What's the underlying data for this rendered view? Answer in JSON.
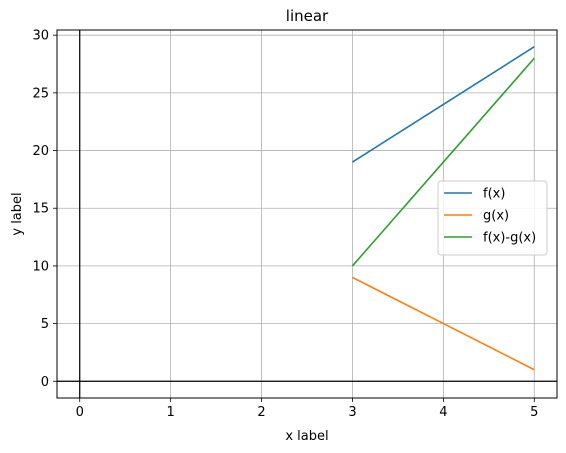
{
  "chart_data": {
    "type": "line",
    "title": "linear",
    "xlabel": "x label",
    "ylabel": "y label",
    "xlim": [
      -0.25,
      5.25
    ],
    "ylim": [
      -1.45,
      30.45
    ],
    "xticks": [
      0,
      1,
      2,
      3,
      4,
      5
    ],
    "yticks": [
      0,
      5,
      10,
      15,
      20,
      25,
      30
    ],
    "grid": true,
    "reference_lines": {
      "x": 0,
      "y": 0
    },
    "legend_position": "center-right",
    "series": [
      {
        "name": "f(x)",
        "color": "#1f77b4",
        "x": [
          3,
          4,
          5
        ],
        "y": [
          19,
          24,
          29
        ]
      },
      {
        "name": "g(x)",
        "color": "#ff7f0e",
        "x": [
          3,
          4,
          5
        ],
        "y": [
          9,
          5,
          1
        ]
      },
      {
        "name": "f(x)-g(x)",
        "color": "#2ca02c",
        "x": [
          3,
          4,
          5
        ],
        "y": [
          10,
          19,
          28
        ]
      }
    ]
  }
}
